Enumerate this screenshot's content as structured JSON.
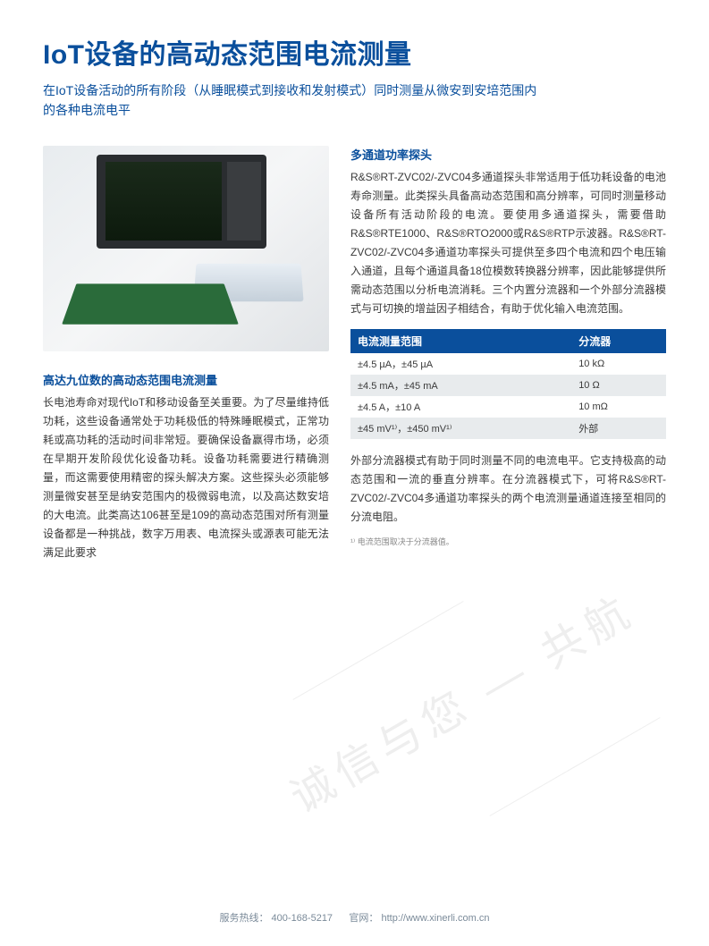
{
  "title": "IoT设备的高动态范围电流测量",
  "subtitle": "在IoT设备活动的所有阶段（从睡眠模式到接收和发射模式）同时测量从微安到安培范围内的各种电流电平",
  "left": {
    "section_title": "高达九位数的高动态范围电流测量",
    "body": "长电池寿命对现代IoT和移动设备至关重要。为了尽量维持低功耗，这些设备通常处于功耗极低的特殊睡眠模式，正常功耗或高功耗的活动时间非常短。要确保设备赢得市场，必须在早期开发阶段优化设备功耗。设备功耗需要进行精确测量，而这需要使用精密的探头解决方案。这些探头必须能够测量微安甚至是纳安范围内的极微弱电流，以及高达数安培的大电流。此类高达106甚至是109的高动态范围对所有测量设备都是一种挑战，数字万用表、电流探头或源表可能无法满足此要求"
  },
  "right": {
    "section_title": "多通道功率探头",
    "body1": "R&S®RT-ZVC02/-ZVC04多通道探头非常适用于低功耗设备的电池寿命测量。此类探头具备高动态范围和高分辨率，可同时测量移动设备所有活动阶段的电流。要使用多通道探头，需要借助R&S®RTE1000、R&S®RTO2000或R&S®RTP示波器。R&S®RT-ZVC02/-ZVC04多通道功率探头可提供至多四个电流和四个电压输入通道，且每个通道具备18位模数转换器分辨率，因此能够提供所需动态范围以分析电流消耗。三个内置分流器和一个外部分流器模式与可切换的增益因子相结合，有助于优化输入电流范围。",
    "table": {
      "header_col1": "电流测量范围",
      "header_col2": "分流器",
      "rows": [
        {
          "c1": "±4.5 µA，±45 µA",
          "c2": "10 kΩ"
        },
        {
          "c1": "±4.5 mA，±45 mA",
          "c2": "10 Ω"
        },
        {
          "c1": "±4.5 A，±10 A",
          "c2": "10 mΩ"
        },
        {
          "c1": "±45 mV¹⁾，±450 mV¹⁾",
          "c2": "外部"
        }
      ],
      "header_bg": "#0a4f9c",
      "row_odd_bg": "#ffffff",
      "row_even_bg": "#e8ebed"
    },
    "body2": "外部分流器模式有助于同时测量不同的电流电平。它支持极高的动态范围和一流的垂直分辨率。在分流器模式下，可将R&S®RT-ZVC02/-ZVC04多通道功率探头的两个电流测量通道连接至相同的分流电阻。",
    "footnote": "¹⁾ 电流范围取决于分流器值。"
  },
  "watermark": "诚信与您 — 共航",
  "footer": {
    "hotline_label": "服务热线：",
    "hotline": "400-168-5217",
    "site_label": "官网：",
    "site": "http://www.xinerli.com.cn"
  },
  "colors": {
    "brand_blue": "#0a4f9c",
    "text": "#3a3a3a",
    "footer_text": "#7a8a99"
  }
}
